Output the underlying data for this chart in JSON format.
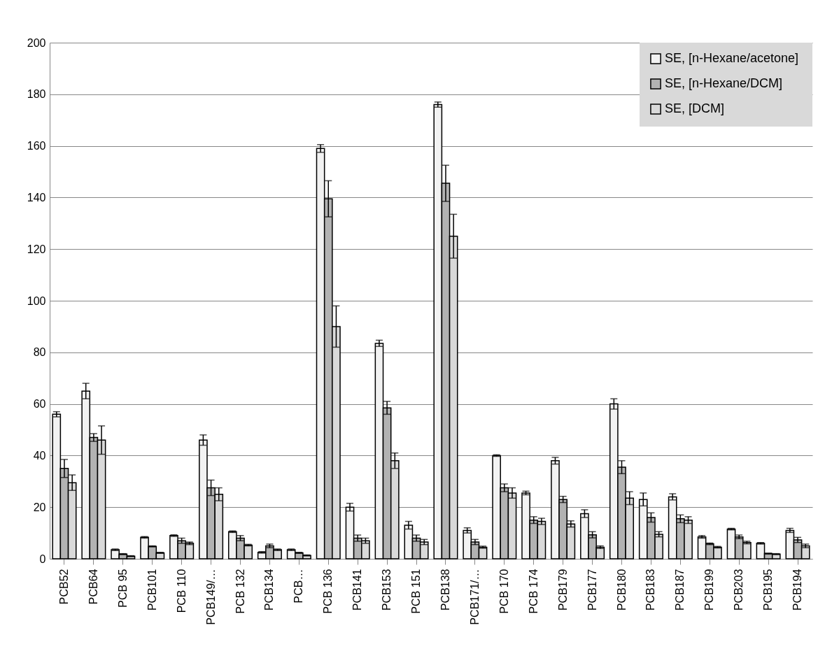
{
  "chart_data": {
    "type": "bar",
    "categories": [
      "PCB52",
      "PCB64",
      "PCB 95",
      "PCB101",
      "PCB 110",
      "PCB149/…",
      "PCB 132",
      "PCB134",
      "PCB…",
      "PCB 136",
      "PCB141",
      "PCB153",
      "PCB 151",
      "PCB138",
      "PCB171/…",
      "PCB 170",
      "PCB 174",
      "PCB179",
      "PCB177",
      "PCB180",
      "PCB183",
      "PCB187",
      "PCB199",
      "PCB203",
      "PCB195",
      "PCB194"
    ],
    "series": [
      {
        "name": "SE,  [n-Hexane/acetone]",
        "color": "#f2f2f2",
        "values": [
          56,
          65,
          3.5,
          8.3,
          9,
          46,
          10.5,
          2.5,
          3.5,
          159,
          20,
          83.5,
          13,
          176,
          11,
          40,
          25.5,
          38,
          17.5,
          60,
          23,
          24,
          8.5,
          11.5,
          6,
          11
        ],
        "errors": [
          1,
          3,
          0.3,
          0.3,
          0.3,
          2,
          0.3,
          0.3,
          0.3,
          1.5,
          1.5,
          1.2,
          1.5,
          1,
          1,
          0.3,
          0.7,
          1.3,
          1.5,
          2,
          2.5,
          1.2,
          0.5,
          0.3,
          0.3,
          0.8
        ]
      },
      {
        "name": "SE,  [n-Hexane/DCM]",
        "color": "#b2b2b2",
        "values": [
          35,
          47,
          1.8,
          4.8,
          7,
          27.5,
          8,
          5,
          2.3,
          139.5,
          8,
          58.5,
          8,
          145.5,
          6.5,
          27.5,
          15,
          23,
          9.3,
          35.5,
          16,
          15.5,
          5.8,
          8.5,
          2,
          7.3
        ],
        "errors": [
          3.5,
          1.5,
          0.2,
          0.2,
          1,
          3,
          1,
          0.7,
          0.2,
          7,
          1.2,
          2.5,
          1.2,
          7,
          1,
          1.5,
          1.3,
          1.2,
          1.2,
          2.5,
          1.8,
          1.5,
          0.3,
          0.7,
          0.2,
          1
        ]
      },
      {
        "name": "SE,  [DCM]",
        "color": "#d9d9d9",
        "values": [
          29.5,
          46,
          1,
          2.3,
          6,
          25,
          5.3,
          3.5,
          1.3,
          90,
          7,
          38,
          6.5,
          125,
          4.5,
          25.5,
          14.5,
          13.5,
          4.5,
          23.5,
          9.5,
          15,
          4.5,
          6.3,
          1.8,
          5
        ],
        "errors": [
          3,
          5.5,
          0.2,
          0.2,
          0.5,
          2.5,
          0.3,
          0.3,
          0.2,
          8,
          1,
          3,
          1,
          8.5,
          0.4,
          2,
          1.2,
          1.2,
          0.5,
          2.5,
          1,
          1.3,
          0.3,
          0.5,
          0.2,
          0.7
        ]
      }
    ],
    "ylim": [
      0,
      200
    ],
    "yticks": [
      0,
      20,
      40,
      60,
      80,
      100,
      120,
      140,
      160,
      180,
      200
    ],
    "grid": "y",
    "legend": "top right"
  }
}
